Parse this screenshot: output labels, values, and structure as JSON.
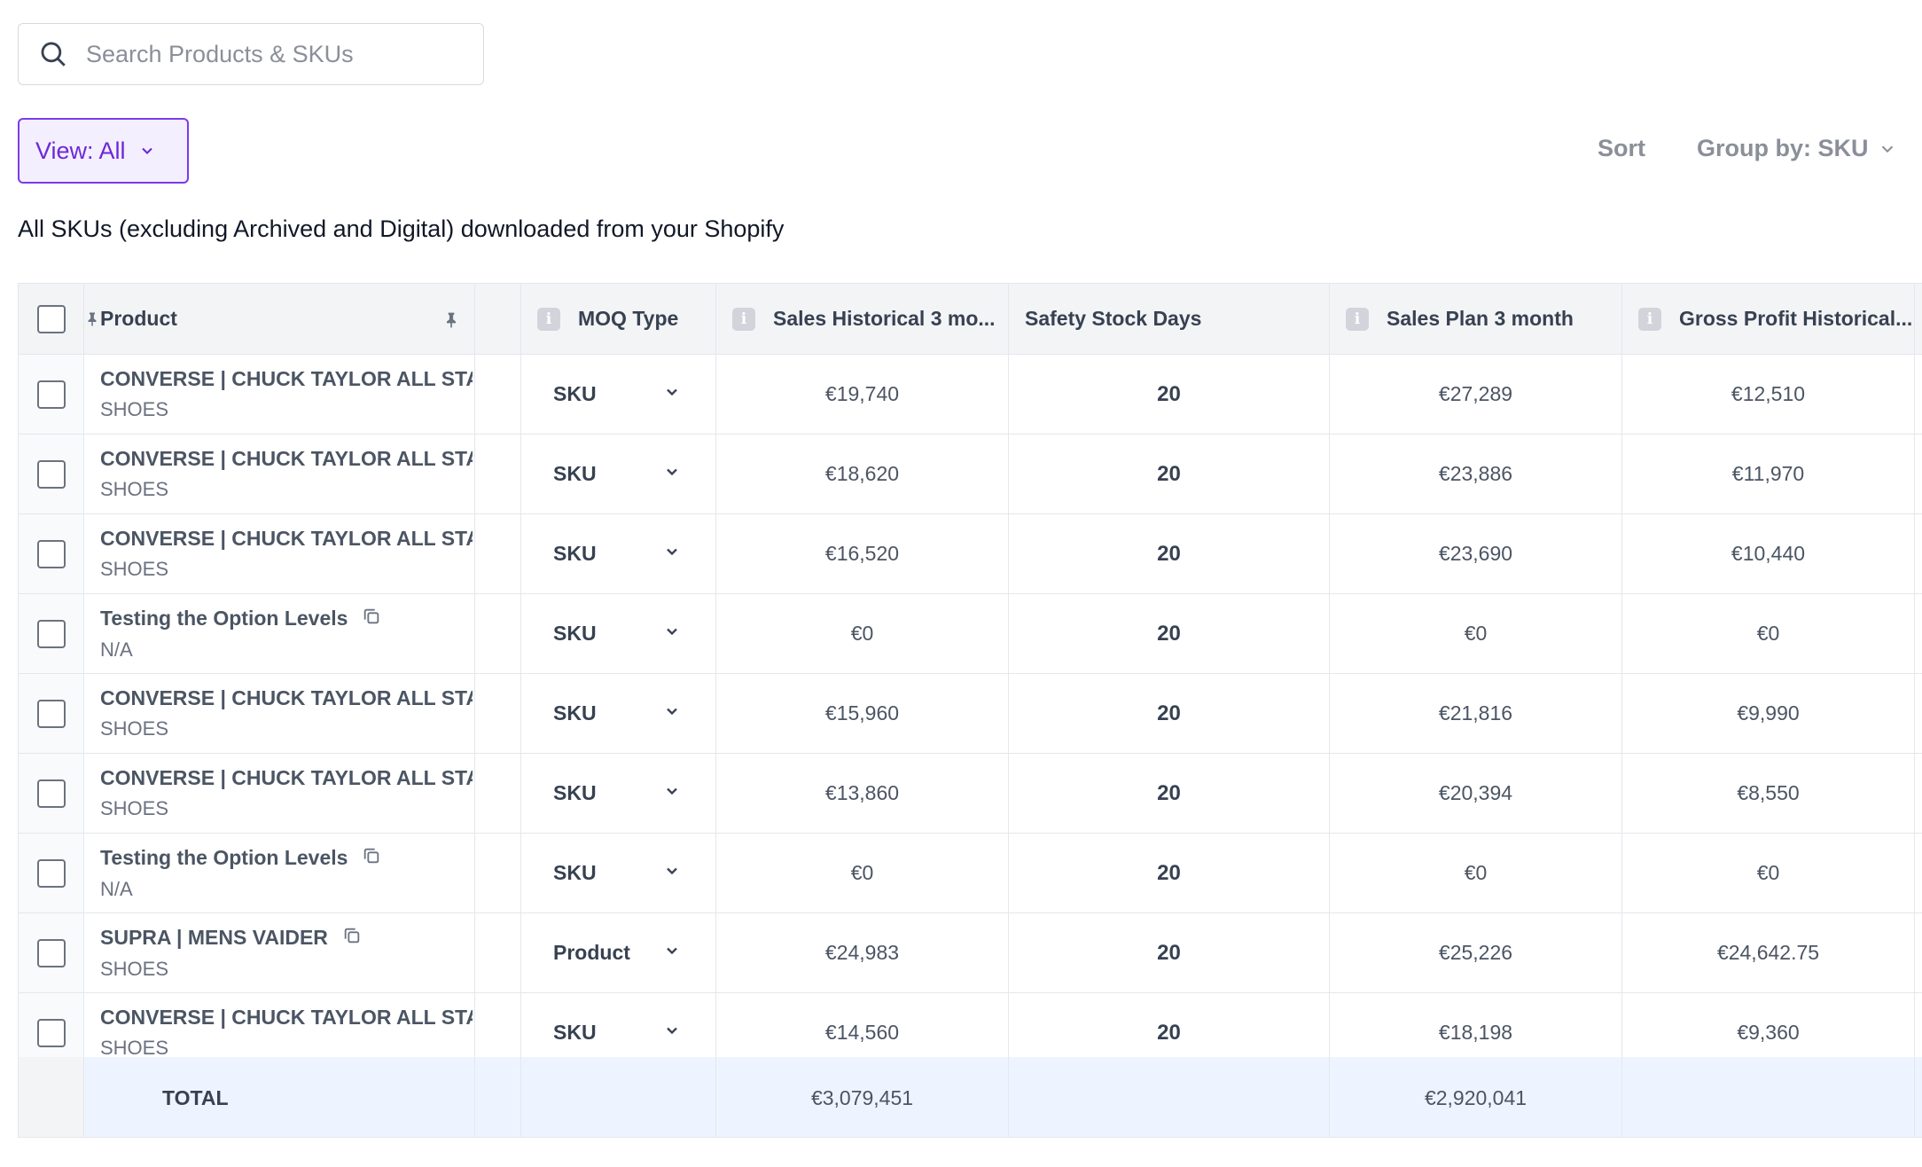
{
  "search": {
    "placeholder": "Search Products & SKUs"
  },
  "toolbar": {
    "view_label": "View: All",
    "sort_label": "Sort",
    "group_label": "Group by: SKU"
  },
  "description": "All SKUs (excluding Archived and Digital) downloaded from your Shopify",
  "table": {
    "columns": {
      "product": "Product",
      "moq_type": "MOQ Type",
      "sales_hist": "Sales Historical 3 mo...",
      "safety": "Safety Stock Days",
      "sales_plan": "Sales Plan 3 month",
      "gross_profit": "Gross Profit Historical..."
    },
    "rows": [
      {
        "product": "CONVERSE | CHUCK TAYLOR ALL STA",
        "category": "SHOES",
        "copy_icon": false,
        "moq": "SKU",
        "sales_hist": "€19,740",
        "safety": "20",
        "sales_plan": "€27,289",
        "gross_profit": "€12,510"
      },
      {
        "product": "CONVERSE | CHUCK TAYLOR ALL STA",
        "category": "SHOES",
        "copy_icon": false,
        "moq": "SKU",
        "sales_hist": "€18,620",
        "safety": "20",
        "sales_plan": "€23,886",
        "gross_profit": "€11,970"
      },
      {
        "product": "CONVERSE | CHUCK TAYLOR ALL STA",
        "category": "SHOES",
        "copy_icon": false,
        "moq": "SKU",
        "sales_hist": "€16,520",
        "safety": "20",
        "sales_plan": "€23,690",
        "gross_profit": "€10,440"
      },
      {
        "product": "Testing the Option Levels",
        "category": "N/A",
        "copy_icon": true,
        "moq": "SKU",
        "sales_hist": "€0",
        "safety": "20",
        "sales_plan": "€0",
        "gross_profit": "€0"
      },
      {
        "product": "CONVERSE | CHUCK TAYLOR ALL STA",
        "category": "SHOES",
        "copy_icon": false,
        "moq": "SKU",
        "sales_hist": "€15,960",
        "safety": "20",
        "sales_plan": "€21,816",
        "gross_profit": "€9,990"
      },
      {
        "product": "CONVERSE | CHUCK TAYLOR ALL STA",
        "category": "SHOES",
        "copy_icon": false,
        "moq": "SKU",
        "sales_hist": "€13,860",
        "safety": "20",
        "sales_plan": "€20,394",
        "gross_profit": "€8,550"
      },
      {
        "product": "Testing the Option Levels",
        "category": "N/A",
        "copy_icon": true,
        "moq": "SKU",
        "sales_hist": "€0",
        "safety": "20",
        "sales_plan": "€0",
        "gross_profit": "€0"
      },
      {
        "product": "SUPRA | MENS VAIDER",
        "category": "SHOES",
        "copy_icon": true,
        "moq": "Product",
        "sales_hist": "€24,983",
        "safety": "20",
        "sales_plan": "€25,226",
        "gross_profit": "€24,642.75"
      },
      {
        "product": "CONVERSE | CHUCK TAYLOR ALL STA",
        "category": "SHOES",
        "copy_icon": false,
        "moq": "SKU",
        "sales_hist": "€14,560",
        "safety": "20",
        "sales_plan": "€18,198",
        "gross_profit": "€9,360"
      }
    ],
    "total": {
      "label": "TOTAL",
      "sales_hist": "€3,079,451",
      "sales_plan": "€2,920,041"
    }
  }
}
